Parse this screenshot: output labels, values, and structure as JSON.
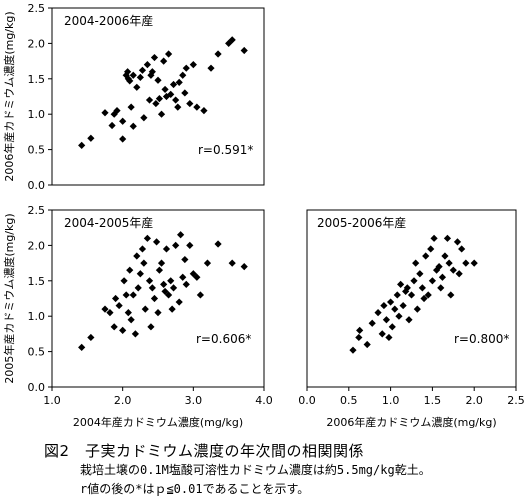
{
  "chart_data": [
    {
      "type": "scatter",
      "title": "2004-2006年産",
      "xlabel": "",
      "ylabel": "2006年産カドミウム濃度(mg/kg)",
      "xlim": [
        1.0,
        4.0
      ],
      "ylim": [
        0.0,
        2.5
      ],
      "x_ticks": [],
      "y_ticks": [
        "0.0",
        "0.5",
        "1.0",
        "1.5",
        "2.0",
        "2.5"
      ],
      "annotation": "r=0.591*",
      "points": [
        [
          1.42,
          0.56
        ],
        [
          1.55,
          0.66
        ],
        [
          1.75,
          1.02
        ],
        [
          1.85,
          0.84
        ],
        [
          1.88,
          1.0
        ],
        [
          1.92,
          1.05
        ],
        [
          2.0,
          0.9
        ],
        [
          2.0,
          0.65
        ],
        [
          2.05,
          1.55
        ],
        [
          2.07,
          1.6
        ],
        [
          2.08,
          1.5
        ],
        [
          2.1,
          1.47
        ],
        [
          2.12,
          1.1
        ],
        [
          2.15,
          0.83
        ],
        [
          2.15,
          1.55
        ],
        [
          2.2,
          1.38
        ],
        [
          2.25,
          1.52
        ],
        [
          2.28,
          1.62
        ],
        [
          2.3,
          0.95
        ],
        [
          2.35,
          1.7
        ],
        [
          2.38,
          1.2
        ],
        [
          2.4,
          1.55
        ],
        [
          2.42,
          1.6
        ],
        [
          2.45,
          1.8
        ],
        [
          2.47,
          1.15
        ],
        [
          2.5,
          1.48
        ],
        [
          2.52,
          1.22
        ],
        [
          2.55,
          1.0
        ],
        [
          2.58,
          1.75
        ],
        [
          2.6,
          1.35
        ],
        [
          2.62,
          1.25
        ],
        [
          2.65,
          1.85
        ],
        [
          2.68,
          1.28
        ],
        [
          2.72,
          1.42
        ],
        [
          2.75,
          1.2
        ],
        [
          2.78,
          1.1
        ],
        [
          2.8,
          1.45
        ],
        [
          2.85,
          1.55
        ],
        [
          2.88,
          1.3
        ],
        [
          2.9,
          1.65
        ],
        [
          2.95,
          1.15
        ],
        [
          3.0,
          1.7
        ],
        [
          3.05,
          1.1
        ],
        [
          3.15,
          1.05
        ],
        [
          3.25,
          1.65
        ],
        [
          3.35,
          1.85
        ],
        [
          3.5,
          2.0
        ],
        [
          3.55,
          2.05
        ],
        [
          3.72,
          1.9
        ]
      ]
    },
    {
      "type": "scatter",
      "title": "2004-2005年産",
      "xlabel": "2004年産カドミウム濃度(mg/kg)",
      "ylabel": "2005年産カドミウム濃度(mg/kg)",
      "xlim": [
        1.0,
        4.0
      ],
      "ylim": [
        0.0,
        2.5
      ],
      "x_ticks": [
        "1.0",
        "2.0",
        "3.0",
        "4.0"
      ],
      "y_ticks": [
        "0.0",
        "0.5",
        "1.0",
        "1.5",
        "2.0",
        "2.5"
      ],
      "annotation": "r=0.606*",
      "points": [
        [
          1.42,
          0.56
        ],
        [
          1.55,
          0.7
        ],
        [
          1.75,
          1.1
        ],
        [
          1.82,
          1.05
        ],
        [
          1.88,
          0.85
        ],
        [
          1.9,
          1.25
        ],
        [
          1.95,
          1.15
        ],
        [
          2.0,
          0.8
        ],
        [
          2.02,
          1.5
        ],
        [
          2.05,
          1.3
        ],
        [
          2.08,
          1.05
        ],
        [
          2.1,
          1.65
        ],
        [
          2.12,
          0.95
        ],
        [
          2.15,
          1.3
        ],
        [
          2.18,
          0.75
        ],
        [
          2.2,
          1.85
        ],
        [
          2.22,
          1.4
        ],
        [
          2.25,
          1.6
        ],
        [
          2.28,
          1.95
        ],
        [
          2.3,
          1.75
        ],
        [
          2.32,
          1.1
        ],
        [
          2.35,
          2.1
        ],
        [
          2.38,
          1.5
        ],
        [
          2.4,
          0.85
        ],
        [
          2.42,
          1.4
        ],
        [
          2.45,
          1.25
        ],
        [
          2.48,
          2.05
        ],
        [
          2.5,
          1.05
        ],
        [
          2.52,
          1.65
        ],
        [
          2.55,
          1.75
        ],
        [
          2.58,
          1.45
        ],
        [
          2.6,
          1.35
        ],
        [
          2.62,
          1.95
        ],
        [
          2.65,
          1.3
        ],
        [
          2.68,
          1.5
        ],
        [
          2.7,
          1.1
        ],
        [
          2.72,
          1.4
        ],
        [
          2.75,
          2.0
        ],
        [
          2.8,
          1.2
        ],
        [
          2.82,
          2.15
        ],
        [
          2.85,
          1.55
        ],
        [
          2.88,
          1.8
        ],
        [
          2.9,
          1.45
        ],
        [
          2.95,
          2.0
        ],
        [
          3.0,
          1.6
        ],
        [
          3.05,
          1.55
        ],
        [
          3.1,
          1.3
        ],
        [
          3.2,
          1.75
        ],
        [
          3.35,
          2.02
        ],
        [
          3.55,
          1.75
        ],
        [
          3.72,
          1.7
        ]
      ]
    },
    {
      "type": "scatter",
      "title": "2005-2006年産",
      "xlabel": "2006年産カドミウム濃度(mg/kg)",
      "ylabel": "",
      "xlim": [
        0.0,
        2.5
      ],
      "ylim": [
        0.0,
        2.5
      ],
      "x_ticks": [
        "0.0",
        "0.5",
        "1.0",
        "1.5",
        "2.0",
        "2.5"
      ],
      "y_ticks": [],
      "annotation": "r=0.800*",
      "points": [
        [
          0.55,
          0.52
        ],
        [
          0.62,
          0.7
        ],
        [
          0.63,
          0.8
        ],
        [
          0.72,
          0.6
        ],
        [
          0.78,
          0.9
        ],
        [
          0.85,
          1.05
        ],
        [
          0.9,
          0.75
        ],
        [
          0.92,
          1.15
        ],
        [
          0.95,
          0.95
        ],
        [
          0.98,
          0.7
        ],
        [
          1.0,
          1.2
        ],
        [
          1.02,
          0.85
        ],
        [
          1.05,
          1.1
        ],
        [
          1.08,
          1.3
        ],
        [
          1.1,
          1.0
        ],
        [
          1.12,
          1.45
        ],
        [
          1.15,
          1.15
        ],
        [
          1.18,
          1.35
        ],
        [
          1.2,
          1.4
        ],
        [
          1.22,
          0.95
        ],
        [
          1.25,
          1.3
        ],
        [
          1.28,
          1.5
        ],
        [
          1.3,
          1.75
        ],
        [
          1.32,
          1.1
        ],
        [
          1.35,
          1.6
        ],
        [
          1.38,
          1.4
        ],
        [
          1.4,
          1.25
        ],
        [
          1.42,
          1.85
        ],
        [
          1.45,
          1.3
        ],
        [
          1.48,
          1.95
        ],
        [
          1.5,
          1.5
        ],
        [
          1.52,
          2.1
        ],
        [
          1.55,
          1.65
        ],
        [
          1.58,
          1.7
        ],
        [
          1.6,
          1.4
        ],
        [
          1.62,
          1.55
        ],
        [
          1.65,
          1.85
        ],
        [
          1.68,
          2.1
        ],
        [
          1.7,
          1.75
        ],
        [
          1.72,
          1.3
        ],
        [
          1.75,
          1.65
        ],
        [
          1.8,
          2.05
        ],
        [
          1.82,
          1.6
        ],
        [
          1.85,
          1.95
        ],
        [
          1.9,
          1.75
        ],
        [
          2.0,
          1.75
        ]
      ]
    }
  ],
  "caption": {
    "title": "図2　子実カドミウム濃度の年次間の相関関係",
    "note1": "栽培土壌の0.1M塩酸可溶性カドミウム濃度は約5.5mg/kg乾土。",
    "note2": "r値の後の*はｐ≦0.01であることを示す。"
  }
}
